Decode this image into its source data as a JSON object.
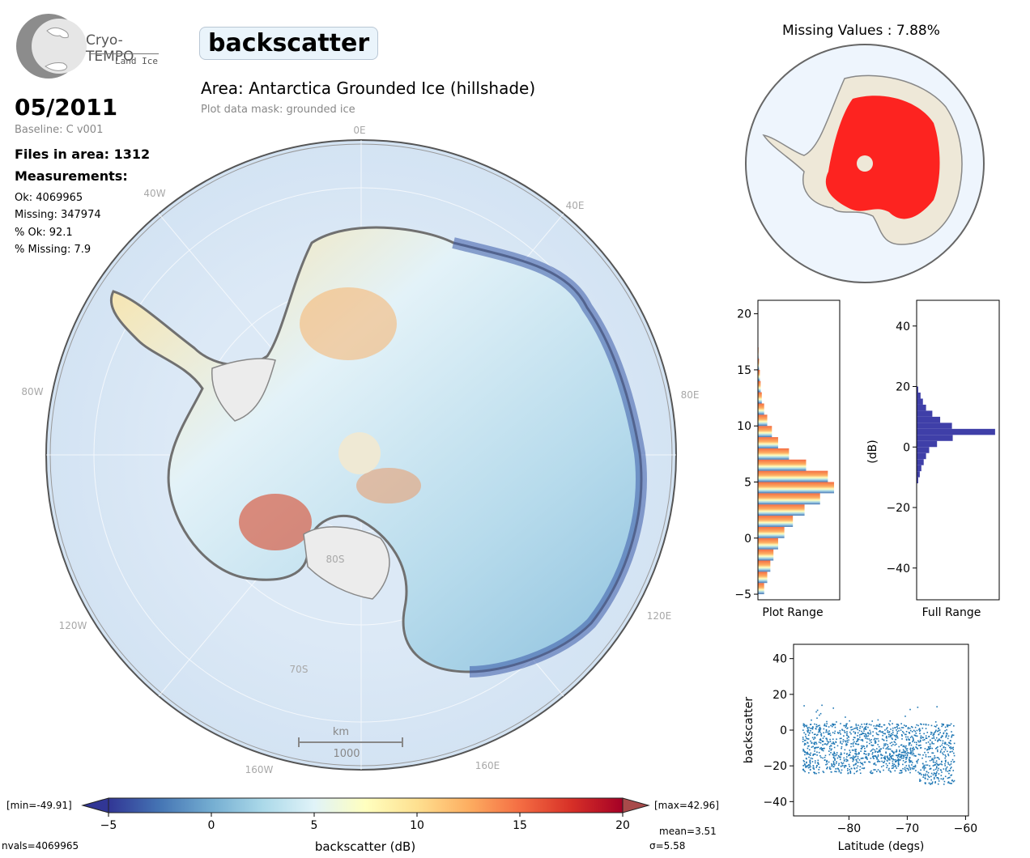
{
  "logo": {
    "name": "Cryo-TEMPO",
    "subtitle": "Land Ice"
  },
  "parameter": "backscatter",
  "area_title": "Area: Antarctica Grounded Ice (hillshade)",
  "mask_note": "Plot data mask: grounded ice",
  "date": "05/2011",
  "baseline": "Baseline: C v001",
  "files": "Files in area: 1312",
  "measurements_heading": "Measurements:",
  "stats": {
    "ok": "Ok: 4069965",
    "missing": "Missing: 347974",
    "pct_ok": "% Ok: 92.1",
    "pct_missing": "% Missing: 7.9"
  },
  "missing_title": "Missing Values : 7.88%",
  "map": {
    "lon_labels": [
      "0E",
      "40E",
      "80E",
      "120E",
      "160E",
      "160W",
      "120W",
      "80W",
      "40W"
    ],
    "lat_labels": [
      "80S",
      "70S"
    ],
    "scale_unit": "km",
    "scale_value": "1000"
  },
  "colorbar": {
    "label": "backscatter (dB)",
    "ticks": [
      "−5",
      "0",
      "5",
      "10",
      "15",
      "20"
    ],
    "min_text": "[min=-49.91]",
    "max_text": "[max=42.96]",
    "nvals": "nvals=4069965",
    "mean": "mean=3.51",
    "sigma": "σ=5.58",
    "colors": [
      "#313695",
      "#4575b4",
      "#74add1",
      "#abd9e9",
      "#e0f3f8",
      "#ffffbf",
      "#fee090",
      "#fdae61",
      "#f46d43",
      "#d73027",
      "#a50026"
    ]
  },
  "chart_data": [
    {
      "type": "bar",
      "orientation": "horizontal",
      "xlabel": "Plot Range",
      "ylim": [
        -5.5,
        21.2
      ],
      "yticks": [
        "−5",
        "0",
        "5",
        "10",
        "15",
        "20"
      ],
      "bins": [
        -5,
        -4,
        -3,
        -2,
        -1,
        0,
        1,
        2,
        3,
        4,
        5,
        6,
        7,
        8,
        9,
        10,
        11,
        12,
        13,
        14,
        15,
        16
      ],
      "values": [
        0.08,
        0.12,
        0.16,
        0.2,
        0.26,
        0.34,
        0.45,
        0.6,
        0.8,
        0.98,
        0.9,
        0.62,
        0.4,
        0.26,
        0.18,
        0.12,
        0.08,
        0.05,
        0.035,
        0.025,
        0.015,
        0.008
      ]
    },
    {
      "type": "bar",
      "orientation": "horizontal",
      "xlabel": "Full Range",
      "ylabel": "(dB)",
      "ylim": [
        -50.5,
        48.5
      ],
      "yticks": [
        "−40",
        "−20",
        "0",
        "20",
        "40"
      ],
      "bins": [
        -12,
        -10,
        -8,
        -6,
        -4,
        -2,
        0,
        2,
        4,
        6,
        8,
        10,
        12,
        14,
        16,
        18
      ],
      "values": [
        0.02,
        0.04,
        0.06,
        0.09,
        0.12,
        0.16,
        0.26,
        0.46,
        1.0,
        0.45,
        0.3,
        0.2,
        0.12,
        0.08,
        0.05,
        0.02
      ],
      "color": "#3f3fa8"
    },
    {
      "type": "scatter",
      "xlabel": "Latitude (degs)",
      "ylabel": "backscatter",
      "xlim": [
        -89.5,
        -59.5
      ],
      "ylim": [
        -48,
        48
      ],
      "xticks": [
        "−80",
        "−70",
        "−60"
      ],
      "yticks": [
        "−40",
        "−20",
        "0",
        "20",
        "40"
      ],
      "color": "#1f77b4"
    }
  ]
}
